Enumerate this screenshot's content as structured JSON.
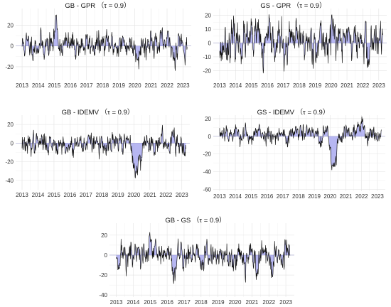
{
  "chart_data": [
    {
      "type": "line",
      "title": "GB - GPR （τ = 0.9）",
      "xlabel": "",
      "ylabel": "",
      "xlim": [
        2012.6,
        2023.5
      ],
      "ylim": [
        -33,
        36
      ],
      "yticks": [
        20,
        0,
        -20
      ],
      "xticks": [
        "2013",
        "2014",
        "2015",
        "2016",
        "2017",
        "2018",
        "2019",
        "2020",
        "2021",
        "2022",
        "2023"
      ],
      "grid": true,
      "series": [
        {
          "seed": 11,
          "sd": 5.5,
          "mean": 1.0,
          "events": [
            [
              2014.95,
              2015.3,
              22
            ],
            [
              2020.0,
              2020.4,
              -7
            ],
            [
              2020.85,
              2021.3,
              8
            ],
            [
              2022.3,
              2022.55,
              -14
            ],
            [
              2022.65,
              2022.9,
              9
            ]
          ],
          "color": "#111111",
          "fill_color": "#aaaaf0"
        }
      ]
    },
    {
      "type": "line",
      "title": "GS - GPR （τ = 0.9）",
      "xlabel": "",
      "ylabel": "",
      "xlim": [
        2012.6,
        2023.5
      ],
      "ylim": [
        -27,
        25
      ],
      "yticks": [
        20,
        10,
        0,
        -10,
        -20
      ],
      "xticks": [
        "2013",
        "2014",
        "2015",
        "2016",
        "2017",
        "2018",
        "2019",
        "2020",
        "2021",
        "2022",
        "2023"
      ],
      "grid": true,
      "series": [
        {
          "seed": 23,
          "sd": 6.0,
          "mean": 1.0,
          "events": [
            [
              2013.0,
              2013.25,
              -8
            ],
            [
              2015.3,
              2015.5,
              8
            ],
            [
              2015.6,
              2015.9,
              -12
            ],
            [
              2017.0,
              2017.3,
              -12
            ],
            [
              2019.9,
              2020.3,
              12
            ],
            [
              2020.9,
              2021.2,
              10
            ],
            [
              2022.2,
              2022.5,
              -12
            ]
          ],
          "color": "#111111",
          "fill_color": "#aaaaf0"
        }
      ]
    },
    {
      "type": "line",
      "title": "GB - IDEMV （τ = 0.9）",
      "xlabel": "",
      "ylabel": "",
      "xlim": [
        2012.6,
        2023.5
      ],
      "ylim": [
        -50,
        30
      ],
      "yticks": [
        20,
        0,
        -20,
        -40
      ],
      "xticks": [
        "2013",
        "2014",
        "2015",
        "2016",
        "2017",
        "2018",
        "2019",
        "2020",
        "2021",
        "2022",
        "2023"
      ],
      "grid": true,
      "series": [
        {
          "seed": 37,
          "sd": 5.0,
          "mean": 0.0,
          "events": [
            [
              2013.2,
              2013.4,
              -10
            ],
            [
              2015.7,
              2016.0,
              -12
            ],
            [
              2017.9,
              2018.5,
              -9
            ],
            [
              2019.8,
              2020.55,
              -30
            ],
            [
              2022.3,
              2022.6,
              16
            ]
          ],
          "color": "#111111",
          "fill_color": "#aaaaf0"
        }
      ]
    },
    {
      "type": "line",
      "title": "GS - IDEMV （τ = 0.9）",
      "xlabel": "",
      "ylabel": "",
      "xlim": [
        2012.6,
        2023.5
      ],
      "ylim": [
        -62,
        24
      ],
      "yticks": [
        20,
        0,
        -20,
        -40,
        -60
      ],
      "xticks": [
        "2013",
        "2014",
        "2015",
        "2016",
        "2017",
        "2018",
        "2019",
        "2020",
        "2021",
        "2022",
        "2023"
      ],
      "grid": true,
      "series": [
        {
          "seed": 53,
          "sd": 4.5,
          "mean": 3.0,
          "events": [
            [
              2013.1,
              2013.6,
              5
            ],
            [
              2014.7,
              2015.0,
              -10
            ],
            [
              2017.1,
              2017.4,
              -8
            ],
            [
              2019.2,
              2019.6,
              -12
            ],
            [
              2019.9,
              2020.55,
              -38
            ],
            [
              2021.7,
              2022.3,
              10
            ]
          ],
          "color": "#111111",
          "fill_color": "#aaaaf0"
        }
      ]
    },
    {
      "type": "line",
      "title": "GB - GS （τ = 0.9）",
      "xlabel": "",
      "ylabel": "",
      "xlim": [
        2012.6,
        2023.5
      ],
      "ylim": [
        -42,
        32
      ],
      "yticks": [
        20,
        0,
        -20,
        -40
      ],
      "xticks": [
        "2013",
        "2014",
        "2015",
        "2016",
        "2017",
        "2018",
        "2019",
        "2020",
        "2021",
        "2022",
        "2023"
      ],
      "grid": true,
      "series": [
        {
          "seed": 71,
          "sd": 6.5,
          "mean": 0.0,
          "events": [
            [
              2014.9,
              2015.1,
              14
            ],
            [
              2016.3,
              2016.6,
              -16
            ],
            [
              2017.8,
              2018.2,
              -8
            ],
            [
              2019.5,
              2019.8,
              -9
            ],
            [
              2021.0,
              2021.6,
              -8
            ],
            [
              2022.0,
              2022.4,
              -14
            ],
            [
              2022.9,
              2023.2,
              8
            ]
          ],
          "color": "#111111",
          "fill_color": "#aaaaf0"
        }
      ]
    }
  ]
}
